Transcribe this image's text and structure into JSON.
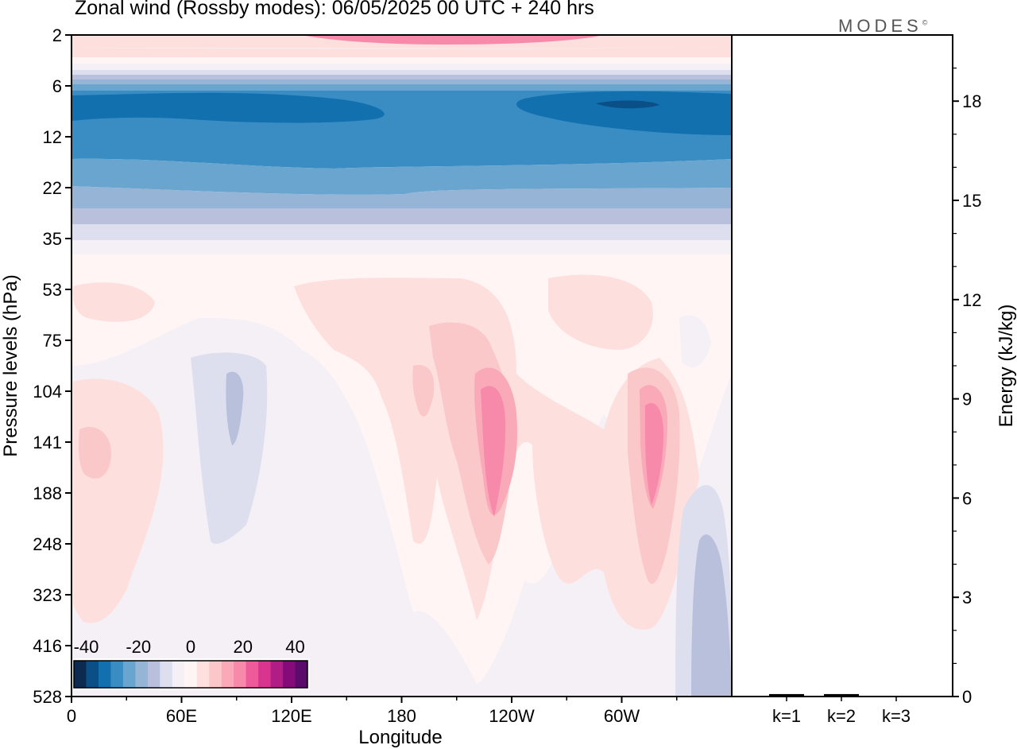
{
  "title": "Zonal wind (Rossby modes):  06/05/2025  00 UTC  + 240 hrs",
  "brand": "MODES",
  "brand_mark": "©",
  "chart_data": [
    {
      "type": "heatmap",
      "title": "Zonal wind (Rossby modes):  06/05/2025  00 UTC  + 240 hrs",
      "xlabel": "Longitude",
      "ylabel": "Pressure levels (hPa)",
      "x_ticks": [
        "0",
        "60E",
        "120E",
        "180",
        "120W",
        "60W"
      ],
      "y_ticks": [
        "2",
        "6",
        "12",
        "22",
        "35",
        "53",
        "75",
        "104",
        "141",
        "188",
        "248",
        "323",
        "416",
        "528"
      ],
      "y_scale": "log",
      "colorbar": {
        "ticks": [
          "-40",
          "-20",
          "0",
          "20",
          "40"
        ],
        "range": [
          -40,
          40
        ],
        "colors": [
          "#0d2b4e",
          "#0a4f86",
          "#1370ae",
          "#3a8dc3",
          "#6aa5cf",
          "#95b4d6",
          "#b9c0dc",
          "#dedfee",
          "#f5f0f6",
          "#fff5f5",
          "#fde0de",
          "#fbc8c9",
          "#f9a9b7",
          "#f78aab",
          "#ee5b9b",
          "#d8358f",
          "#b01d84",
          "#850b78",
          "#5c0a6b"
        ]
      },
      "grid": false
    },
    {
      "type": "bar",
      "ylabel": "Energy (kJ/kg)",
      "ylim": [
        0,
        20
      ],
      "y_ticks": [
        "0",
        "3",
        "6",
        "9",
        "12",
        "15",
        "18"
      ],
      "categories": [
        "k=1",
        "k=2",
        "k=3"
      ],
      "values": [
        0.05,
        0.05,
        0.0
      ]
    }
  ]
}
